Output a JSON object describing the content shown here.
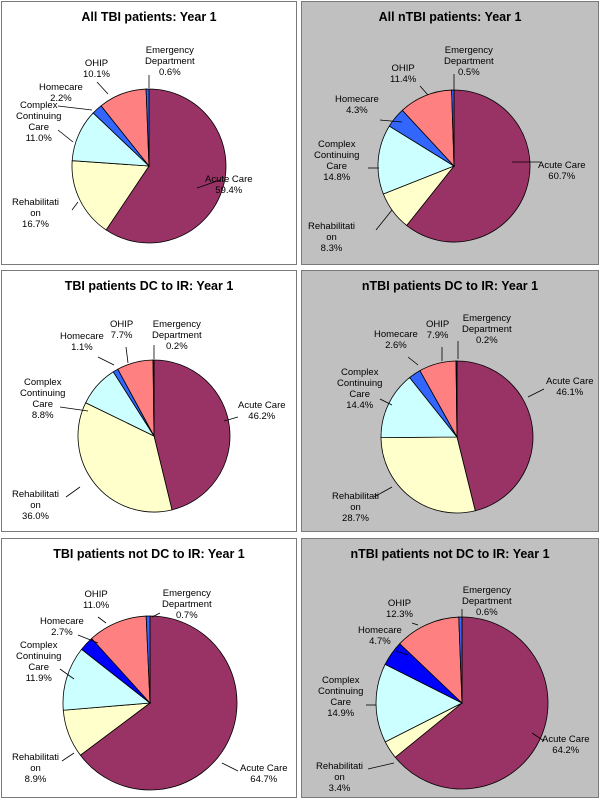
{
  "colors": {
    "acute_care": "#993366",
    "rehabilitation": "#ffffcc",
    "complex_continuing_care": "#ccffff",
    "homecare_light": "#3366ff",
    "homecare_dark": "#0000ff",
    "ohip": "#ff8080",
    "emergency_department": "#3366ff",
    "panel_grey": "#c0c0c0"
  },
  "chart_data": [
    {
      "type": "pie",
      "title": "All TBI patients: Year 1",
      "categories": [
        "Acute Care",
        "Rehabilitation",
        "Complex Continuing Care",
        "Homecare",
        "OHIP",
        "Emergency Department"
      ],
      "values": [
        59.4,
        16.7,
        11.0,
        2.2,
        10.1,
        0.6
      ],
      "labels": [
        {
          "name": "Acute Care",
          "pct": "59.4%"
        },
        {
          "name": "Rehabilitati\non",
          "pct": "16.7%"
        },
        {
          "name": "Complex\nContinuing\nCare",
          "pct": "11.0%"
        },
        {
          "name": "Homecare",
          "pct": "2.2%"
        },
        {
          "name": "OHIP",
          "pct": "10.1%"
        },
        {
          "name": "Emergency\nDepartment",
          "pct": "0.6%"
        }
      ]
    },
    {
      "type": "pie",
      "title": "All nTBI patients: Year 1",
      "categories": [
        "Acute Care",
        "Rehabilitation",
        "Complex Continuing Care",
        "Homecare",
        "OHIP",
        "Emergency Department"
      ],
      "values": [
        60.7,
        8.3,
        14.8,
        4.3,
        11.4,
        0.5
      ],
      "labels": [
        {
          "name": "Acute Care",
          "pct": "60.7%"
        },
        {
          "name": "Rehabilitati\non",
          "pct": "8.3%"
        },
        {
          "name": "Complex\nContinuing\nCare",
          "pct": "14.8%"
        },
        {
          "name": "Homecare",
          "pct": "4.3%"
        },
        {
          "name": "OHIP",
          "pct": "11.4%"
        },
        {
          "name": "Emergency\nDepartment",
          "pct": "0.5%"
        }
      ]
    },
    {
      "type": "pie",
      "title": "TBI patients DC to IR: Year 1",
      "categories": [
        "Acute Care",
        "Rehabilitation",
        "Complex Continuing Care",
        "Homecare",
        "OHIP",
        "Emergency Department"
      ],
      "values": [
        46.2,
        36.0,
        8.8,
        1.1,
        7.7,
        0.2
      ],
      "labels": [
        {
          "name": "Acute Care",
          "pct": "46.2%"
        },
        {
          "name": "Rehabilitati\non",
          "pct": "36.0%"
        },
        {
          "name": "Complex\nContinuing\nCare",
          "pct": "8.8%"
        },
        {
          "name": "Homecare",
          "pct": "1.1%"
        },
        {
          "name": "OHIP",
          "pct": "7.7%"
        },
        {
          "name": "Emergency\nDepartment",
          "pct": "0.2%"
        }
      ]
    },
    {
      "type": "pie",
      "title": "nTBI patients DC to IR: Year 1",
      "categories": [
        "Acute Care",
        "Rehabilitation",
        "Complex Continuing Care",
        "Homecare",
        "OHIP",
        "Emergency Department"
      ],
      "values": [
        46.1,
        28.7,
        14.4,
        2.6,
        7.9,
        0.2
      ],
      "labels": [
        {
          "name": "Acute Care",
          "pct": "46.1%"
        },
        {
          "name": "Rehabilitati\non",
          "pct": "28.7%"
        },
        {
          "name": "Complex\nContinuing\nCare",
          "pct": "14.4%"
        },
        {
          "name": "Homecare",
          "pct": "2.6%"
        },
        {
          "name": "OHIP",
          "pct": "7.9%"
        },
        {
          "name": "Emergency\nDepartment",
          "pct": "0.2%"
        }
      ]
    },
    {
      "type": "pie",
      "title": "TBI patients not DC to IR: Year 1",
      "categories": [
        "Acute Care",
        "Rehabilitation",
        "Complex Continuing Care",
        "Homecare",
        "OHIP",
        "Emergency Department"
      ],
      "values": [
        64.7,
        8.9,
        11.9,
        2.7,
        11.0,
        0.7
      ],
      "labels": [
        {
          "name": "Acute Care",
          "pct": "64.7%"
        },
        {
          "name": "Rehabilitati\non",
          "pct": "8.9%"
        },
        {
          "name": "Complex\nContinuing\nCare",
          "pct": "11.9%"
        },
        {
          "name": "Homecare",
          "pct": "2.7%"
        },
        {
          "name": "OHIP",
          "pct": "11.0%"
        },
        {
          "name": "Emergency\nDepartment",
          "pct": "0.7%"
        }
      ]
    },
    {
      "type": "pie",
      "title": "nTBI patients not DC to IR: Year 1",
      "categories": [
        "Acute Care",
        "Rehabilitation",
        "Complex Continuing Care",
        "Homecare",
        "OHIP",
        "Emergency Department"
      ],
      "values": [
        64.2,
        3.4,
        14.9,
        4.7,
        12.3,
        0.6
      ],
      "labels": [
        {
          "name": "Acute Care",
          "pct": "64.2%"
        },
        {
          "name": "Rehabilitati\non",
          "pct": "3.4%"
        },
        {
          "name": "Complex\nContinuing\nCare",
          "pct": "14.9%"
        },
        {
          "name": "Homecare",
          "pct": "4.7%"
        },
        {
          "name": "OHIP",
          "pct": "12.3%"
        },
        {
          "name": "Emergency\nDepartment",
          "pct": "0.6%"
        }
      ]
    }
  ]
}
